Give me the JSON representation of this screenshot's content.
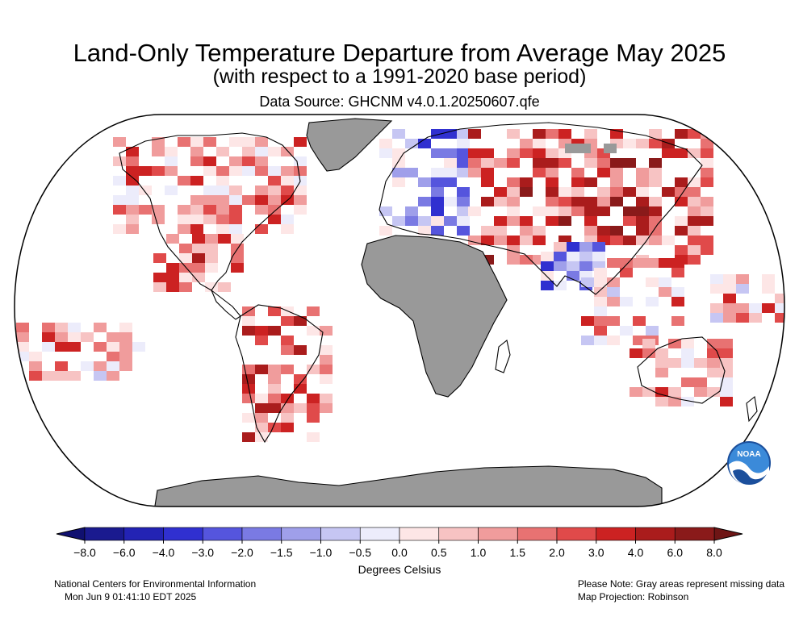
{
  "title": "Land-Only Temperature Departure from Average May 2025",
  "subtitle": "(with respect to a 1991-2020 base period)",
  "data_source": "Data Source: GHCNM v4.0.1.20250607.qfe",
  "projection_note": "Map Projection: Robinson",
  "missing_note": "Please Note: Gray areas represent missing data",
  "org": "National Centers for Environmental Information",
  "timestamp": "Mon Jun  9 01:41:10 EDT 2025",
  "logo_text": "NOAA",
  "colorbar": {
    "label": "Degrees Celsius",
    "ticks": [
      "−8.0",
      "−6.0",
      "−4.0",
      "−3.0",
      "−2.0",
      "−1.5",
      "−1.0",
      "−0.5",
      "0.0",
      "0.5",
      "1.0",
      "1.5",
      "2.0",
      "3.0",
      "4.0",
      "6.0",
      "8.0"
    ],
    "colors": [
      "#1a1a8f",
      "#2323b4",
      "#3030d0",
      "#5555dd",
      "#7a7ae3",
      "#9f9fea",
      "#c6c6f3",
      "#ececfb",
      "#fde6e6",
      "#f7c3c3",
      "#f09c9c",
      "#e87272",
      "#e04a4a",
      "#cc2222",
      "#aa1c1c",
      "#8a1a1a"
    ],
    "end_left": "#101070",
    "end_right": "#6e1515"
  },
  "map": {
    "ocean_color": "#ffffff",
    "missing_color": "#999999",
    "border_color": "#000000"
  }
}
